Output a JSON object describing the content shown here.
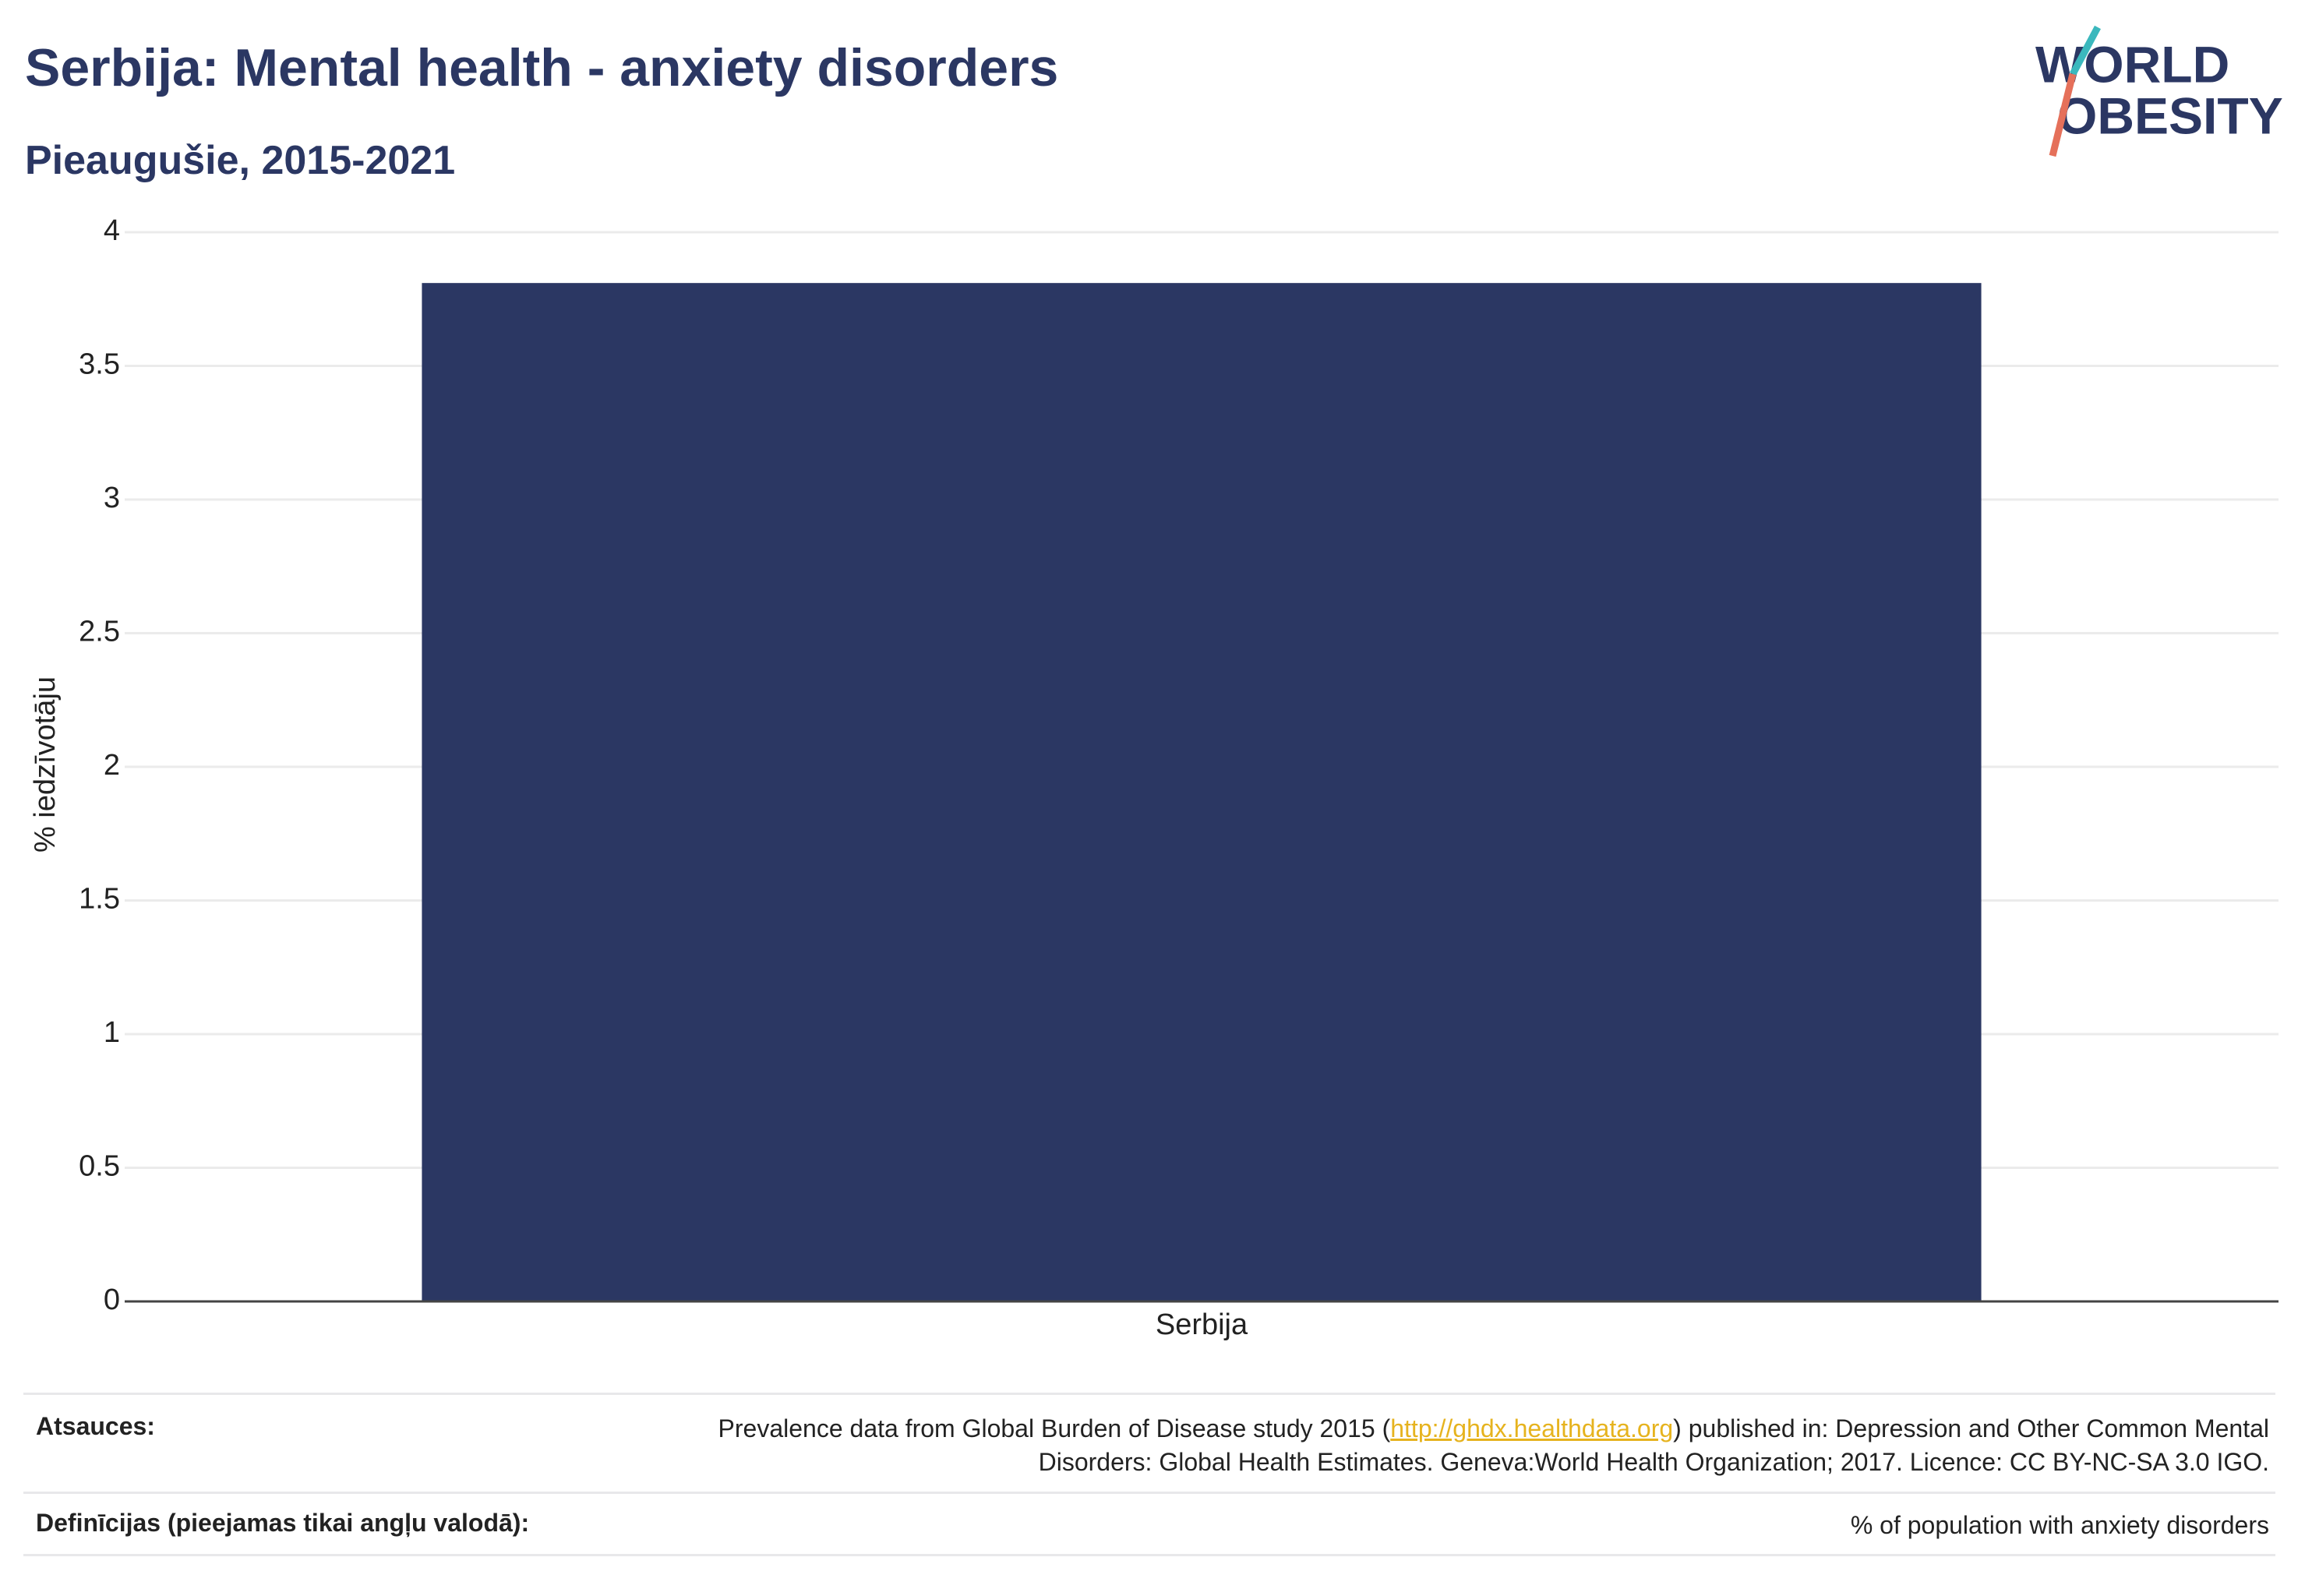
{
  "chart_data": {
    "type": "bar",
    "title": "Serbija: Mental health - anxiety disorders",
    "subtitle": "Pieaugušie, 2015-2021",
    "y_label": "% iedzīvotāju",
    "categories": [
      "Serbija"
    ],
    "values": [
      3.81
    ],
    "color": "#2b3763",
    "ylim": [
      0,
      4
    ],
    "yticks": [
      0,
      0.5,
      1,
      1.5,
      2,
      2.5,
      3,
      3.5,
      4
    ],
    "grid": true
  },
  "logo": {
    "line1": "WORLD",
    "line2": "OBESITY"
  },
  "footer": {
    "sources_label": "Atsauces:",
    "sources": {
      "before": "Prevalence data from Global Burden of Disease study 2015 (",
      "link": "http://ghdx.healthdata.org",
      "after": ") published in: Depression and Other Common Mental Disorders: Global Health Estimates. Geneva:World Health Organization; 2017. Licence: CC BY-NC-SA 3.0 IGO."
    },
    "definitions_label": "Definīcijas (pieejamas tikai angļu valodā):",
    "definitions": "% of population with anxiety disorders"
  }
}
